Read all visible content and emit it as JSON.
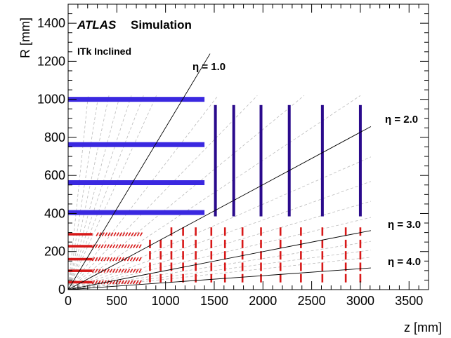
{
  "chart_data": {
    "type": "scatter",
    "title": "",
    "experiment_label": "ATLAS",
    "status_label": "Simulation",
    "subtitle": "ITk Inclined",
    "xlabel": "z [mm]",
    "ylabel": "R [mm]",
    "xlim": [
      0,
      3700
    ],
    "ylim": [
      0,
      1500
    ],
    "x_ticks": [
      0,
      500,
      1000,
      1500,
      2000,
      2500,
      3000,
      3500
    ],
    "y_ticks": [
      0,
      200,
      400,
      600,
      800,
      1000,
      1200,
      1400
    ],
    "grid": false,
    "colors": {
      "strip": "#3a28e0",
      "strip_endcap": "#2a0a8c",
      "pixel": "#d81818",
      "eta_line": "#000000",
      "guide_line": "#bbbbbb"
    },
    "eta_lines": [
      {
        "label": "η = 1.0",
        "eta": 1.0
      },
      {
        "label": "η = 2.0",
        "eta": 2.0
      },
      {
        "label": "η = 3.0",
        "eta": 3.0
      },
      {
        "label": "η = 4.0",
        "eta": 4.0
      }
    ],
    "strip_barrel": [
      {
        "r": 1000,
        "z_max": 1400
      },
      {
        "r": 762,
        "z_max": 1400
      },
      {
        "r": 562,
        "z_max": 1400
      },
      {
        "r": 405,
        "z_max": 1400
      }
    ],
    "strip_endcap": [
      {
        "z": 1512,
        "r_min": 385,
        "r_max": 970
      },
      {
        "z": 1700,
        "r_min": 385,
        "r_max": 970
      },
      {
        "z": 1980,
        "r_min": 385,
        "r_max": 970
      },
      {
        "z": 2270,
        "r_min": 385,
        "r_max": 970
      },
      {
        "z": 2610,
        "r_min": 385,
        "r_max": 970
      },
      {
        "z": 3000,
        "r_min": 385,
        "r_max": 970
      }
    ],
    "pixel_barrel": [
      {
        "r": 39,
        "z_max": 250
      },
      {
        "r": 99,
        "z_max": 250
      },
      {
        "r": 160,
        "z_max": 250
      },
      {
        "r": 228,
        "z_max": 250
      },
      {
        "r": 291,
        "z_max": 250
      }
    ],
    "pixel_inclined": [
      {
        "r": 39,
        "z_min": 260,
        "z_max": 750
      },
      {
        "r": 99,
        "z_min": 260,
        "z_max": 750
      },
      {
        "r": 160,
        "z_min": 260,
        "z_max": 750
      },
      {
        "r": 228,
        "z_min": 260,
        "z_max": 750
      },
      {
        "r": 291,
        "z_min": 300,
        "z_max": 750
      }
    ],
    "pixel_rings": {
      "z": [
        840,
        950,
        1060,
        1180,
        1310,
        1470,
        1610,
        1790,
        1980,
        2180,
        2390,
        2610,
        2850,
        3000
      ],
      "r": [
        60,
        120,
        180,
        240,
        305
      ]
    }
  }
}
